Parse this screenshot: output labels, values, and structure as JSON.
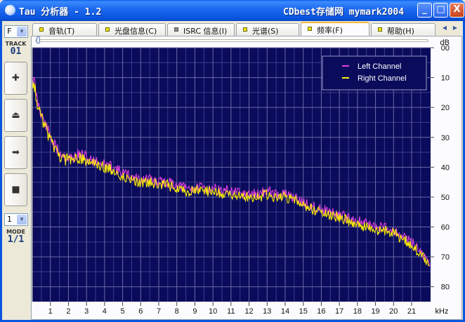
{
  "window": {
    "title": "Tau 分析器 - 1.2",
    "title_right": "CDbest存储网 mymark2004",
    "minimize_label": "_",
    "maximize_label": "□",
    "close_label": "X"
  },
  "left_panel": {
    "drive_select": "F",
    "track_label": "TRACK",
    "track_value": "01",
    "mode_select": "1",
    "mode_label": "MODE",
    "mode_value": "1/1",
    "buttons": [
      {
        "icon": "plus-icon",
        "glyph": "✚"
      },
      {
        "icon": "eject-icon",
        "glyph": "⏏"
      },
      {
        "icon": "arrow-right-icon",
        "glyph": "➡"
      },
      {
        "icon": "stop-icon",
        "glyph": "■"
      }
    ]
  },
  "tabs": [
    {
      "label": "音轨(T)",
      "flag": "yellow"
    },
    {
      "label": "光盘信息(C)",
      "flag": "yellow"
    },
    {
      "label": "ISRC 信息(I)",
      "flag": "grey"
    },
    {
      "label": "光谱(S)",
      "flag": "yellow"
    },
    {
      "label": "频率(F)",
      "flag": "yellow",
      "active": true
    },
    {
      "label": "帮助(H)",
      "flag": "yellow"
    }
  ],
  "tab_nav": {
    "prev": "◀",
    "next": "▶"
  },
  "chart_data": {
    "type": "line",
    "xlabel": "kHz",
    "ylabel": "dB",
    "xlim": [
      0,
      22.05
    ],
    "ylim": [
      0,
      85
    ],
    "x_ticks": [
      1,
      2,
      3,
      4,
      5,
      6,
      7,
      8,
      9,
      10,
      11,
      12,
      13,
      14,
      15,
      16,
      17,
      18,
      19,
      20,
      21
    ],
    "y_ticks": [
      0,
      10,
      20,
      30,
      40,
      50,
      60,
      70,
      80
    ],
    "y_tick_labels": [
      "00",
      "10",
      "20",
      "30",
      "40",
      "50",
      "60",
      "70",
      "80"
    ],
    "background": "#0B0B5C",
    "grid": true,
    "legend_position": "top-right",
    "series": [
      {
        "name": "Left Channel",
        "color": "#E040E0",
        "x": [
          0,
          0.1,
          0.25,
          0.5,
          0.75,
          1,
          1.25,
          1.5,
          1.75,
          2,
          2.25,
          2.5,
          2.75,
          3,
          3.5,
          4,
          4.5,
          5,
          5.5,
          6,
          6.5,
          7,
          7.5,
          8,
          8.5,
          9,
          9.5,
          10,
          10.5,
          11,
          11.5,
          12,
          12.5,
          13,
          13.5,
          14,
          14.5,
          15,
          15.5,
          16,
          16.5,
          17,
          17.5,
          18,
          18.5,
          19,
          19.5,
          20,
          20.5,
          21,
          21.5,
          21.8,
          22
        ],
        "y": [
          10,
          11,
          17,
          22,
          26,
          30,
          33,
          35,
          36,
          37,
          37,
          36,
          36,
          37,
          38,
          39,
          40,
          42,
          43,
          44,
          44,
          45,
          45,
          46,
          47,
          47,
          47,
          47,
          48,
          48,
          49,
          49,
          49,
          48,
          49,
          49,
          50,
          52,
          53,
          54,
          55,
          56,
          57,
          58,
          59,
          60,
          60,
          61,
          63,
          65,
          68,
          71,
          72
        ]
      },
      {
        "name": "Right Channel",
        "color": "#FFF000",
        "x": [
          0,
          0.1,
          0.25,
          0.5,
          0.75,
          1,
          1.25,
          1.5,
          1.75,
          2,
          2.25,
          2.5,
          2.75,
          3,
          3.5,
          4,
          4.5,
          5,
          5.5,
          6,
          6.5,
          7,
          7.5,
          8,
          8.5,
          9,
          9.5,
          10,
          10.5,
          11,
          11.5,
          12,
          12.5,
          13,
          13.5,
          14,
          14.5,
          15,
          15.5,
          16,
          16.5,
          17,
          17.5,
          18,
          18.5,
          19,
          19.5,
          20,
          20.5,
          21,
          21.5,
          21.8,
          22
        ],
        "y": [
          11,
          12,
          18,
          23,
          27,
          31,
          34,
          36,
          37,
          38,
          38,
          37,
          37,
          38,
          39,
          40,
          41,
          43,
          44,
          45,
          45,
          46,
          46,
          47,
          48,
          48,
          48,
          48,
          49,
          49,
          50,
          50,
          50,
          49,
          50,
          50,
          51,
          53,
          54,
          55,
          56,
          57,
          58,
          59,
          60,
          61,
          61,
          62,
          64,
          66,
          69,
          72,
          73
        ]
      }
    ]
  }
}
